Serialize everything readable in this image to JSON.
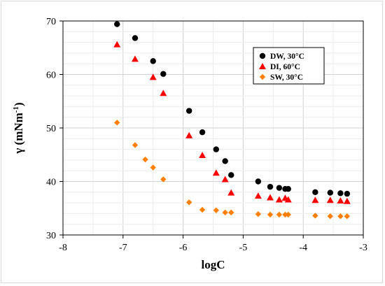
{
  "chart_data": {
    "type": "scatter",
    "title": "",
    "xlabel": "logC",
    "ylabel_main": "γ (mNm",
    "ylabel_sup": "-1",
    "ylabel_close": ")",
    "xlim": [
      -8,
      -3
    ],
    "ylim": [
      30,
      70
    ],
    "x_ticks": [
      -8,
      -7,
      -6,
      -5,
      -4,
      -3
    ],
    "y_ticks": [
      30,
      40,
      50,
      60,
      70
    ],
    "grid": "major and minor, light gray",
    "legend_position": "top-right",
    "series": [
      {
        "name": "DW,  30°C",
        "marker": "circle",
        "color": "#000000",
        "x": [
          -7.1,
          -6.8,
          -6.5,
          -6.33,
          -5.9,
          -5.68,
          -5.45,
          -5.3,
          -5.2,
          -4.75,
          -4.55,
          -4.4,
          -4.3,
          -4.25,
          -3.8,
          -3.55,
          -3.38,
          -3.27
        ],
        "y": [
          69.4,
          66.8,
          62.5,
          60.1,
          53.2,
          49.2,
          46.0,
          43.8,
          41.2,
          40.0,
          39.0,
          38.8,
          38.6,
          38.6,
          38.0,
          37.9,
          37.8,
          37.7
        ]
      },
      {
        "name": "DI,  60°C",
        "marker": "triangle",
        "color": "#ff0000",
        "x": [
          -7.1,
          -6.8,
          -6.5,
          -6.33,
          -5.9,
          -5.68,
          -5.45,
          -5.3,
          -5.2,
          -4.75,
          -4.55,
          -4.4,
          -4.3,
          -4.25,
          -3.8,
          -3.55,
          -3.38,
          -3.27
        ],
        "y": [
          65.6,
          62.9,
          59.5,
          56.5,
          48.6,
          44.9,
          41.6,
          40.4,
          37.9,
          37.3,
          37.0,
          36.6,
          36.9,
          36.6,
          36.5,
          36.5,
          36.4,
          36.3
        ]
      },
      {
        "name": "SW,  30°C",
        "marker": "diamond",
        "color": "#ff8000",
        "x": [
          -7.1,
          -6.8,
          -6.63,
          -6.5,
          -6.33,
          -5.9,
          -5.68,
          -5.45,
          -5.3,
          -5.2,
          -4.75,
          -4.55,
          -4.4,
          -4.3,
          -4.25,
          -3.8,
          -3.55,
          -3.38,
          -3.27
        ],
        "y": [
          51.0,
          46.8,
          44.1,
          42.6,
          40.4,
          36.1,
          34.7,
          34.6,
          34.2,
          34.2,
          33.9,
          33.8,
          33.8,
          33.8,
          33.8,
          33.6,
          33.5,
          33.5,
          33.5
        ]
      }
    ]
  }
}
